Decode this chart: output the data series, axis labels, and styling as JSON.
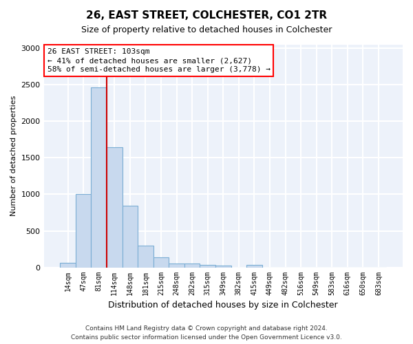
{
  "title": "26, EAST STREET, COLCHESTER, CO1 2TR",
  "subtitle": "Size of property relative to detached houses in Colchester",
  "xlabel": "Distribution of detached houses by size in Colchester",
  "ylabel": "Number of detached properties",
  "bar_color": "#c8d9ee",
  "bar_edge_color": "#7aadd4",
  "categories": [
    "14sqm",
    "47sqm",
    "81sqm",
    "114sqm",
    "148sqm",
    "181sqm",
    "215sqm",
    "248sqm",
    "282sqm",
    "315sqm",
    "349sqm",
    "382sqm",
    "415sqm",
    "449sqm",
    "482sqm",
    "516sqm",
    "549sqm",
    "583sqm",
    "616sqm",
    "650sqm",
    "683sqm"
  ],
  "values": [
    60,
    1000,
    2470,
    1650,
    840,
    300,
    140,
    55,
    55,
    35,
    20,
    0,
    30,
    0,
    0,
    0,
    0,
    0,
    0,
    0,
    0
  ],
  "ylim": [
    0,
    3050
  ],
  "yticks": [
    0,
    500,
    1000,
    1500,
    2000,
    2500,
    3000
  ],
  "annotation_box_text": "26 EAST STREET: 103sqm\n← 41% of detached houses are smaller (2,627)\n58% of semi-detached houses are larger (3,778) →",
  "vline_color": "#cc0000",
  "vline_x": 2.5,
  "bg_color": "#edf2fa",
  "grid_color": "#ffffff",
  "footer_line1": "Contains HM Land Registry data © Crown copyright and database right 2024.",
  "footer_line2": "Contains public sector information licensed under the Open Government Licence v3.0."
}
